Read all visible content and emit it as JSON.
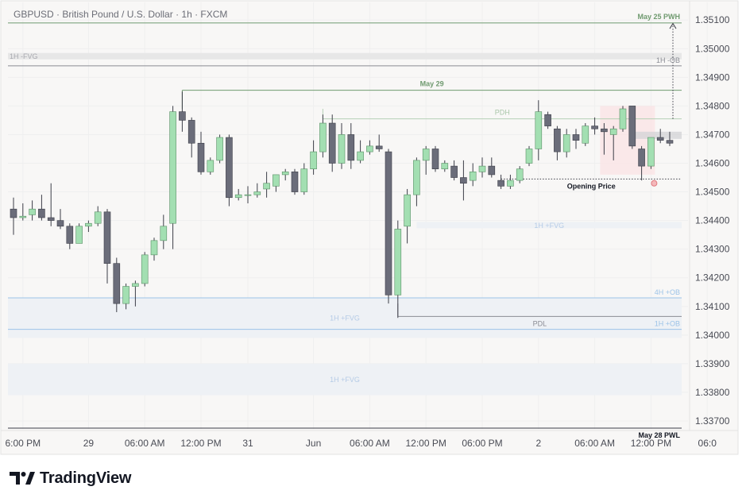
{
  "header": {
    "symbol_title": "GBPUSD · British Pound / U.S. Dollar · 1h · FXCM"
  },
  "brand": {
    "name": "TradingView",
    "logo_icon": "tradingview-logo-icon"
  },
  "colors": {
    "up": "#a3dfb2",
    "down": "#6b6d7a",
    "wick": "#3c3e48",
    "green_line": "#6f9a6f",
    "blue_line": "#9cc3e8",
    "gray_line": "#8a8c94",
    "fvg_zone": "#eef1f5",
    "bear_fvg_zone": "#e7e7e7",
    "session_box": "#fbe3e4"
  },
  "chart_data": {
    "type": "candlestick",
    "title": "GBPUSD · British Pound / U.S. Dollar · 1h · FXCM",
    "ylim": [
      1.3365,
      1.3517
    ],
    "y_ticks": [
      "1.35100",
      "1.35000",
      "1.34900",
      "1.34800",
      "1.34700",
      "1.34600",
      "1.34500",
      "1.34400",
      "1.34300",
      "1.34200",
      "1.34100",
      "1.34000",
      "1.33900",
      "1.33800",
      "1.33700"
    ],
    "x_ticks": [
      {
        "label": "6:00 PM",
        "index": 1
      },
      {
        "label": "29",
        "index": 8
      },
      {
        "label": "06:00 AM",
        "index": 14
      },
      {
        "label": "12:00 PM",
        "index": 20
      },
      {
        "label": "31",
        "index": 25
      },
      {
        "label": "Jun",
        "index": 32
      },
      {
        "label": "06:00 AM",
        "index": 38
      },
      {
        "label": "12:00 PM",
        "index": 44
      },
      {
        "label": "06:00 PM",
        "index": 50
      },
      {
        "label": "2",
        "index": 56
      },
      {
        "label": "06:00 AM",
        "index": 62
      },
      {
        "label": "12:00 PM",
        "index": 68
      },
      {
        "label": "06:0",
        "index": 74
      }
    ],
    "candles": [
      {
        "o": 1.3444,
        "h": 1.3448,
        "l": 1.3435,
        "c": 1.3441
      },
      {
        "o": 1.3441,
        "h": 1.3446,
        "l": 1.344,
        "c": 1.34415
      },
      {
        "o": 1.3442,
        "h": 1.3447,
        "l": 1.344,
        "c": 1.3444
      },
      {
        "o": 1.3444,
        "h": 1.3449,
        "l": 1.344,
        "c": 1.3441
      },
      {
        "o": 1.3441,
        "h": 1.3453,
        "l": 1.3438,
        "c": 1.344
      },
      {
        "o": 1.344,
        "h": 1.3444,
        "l": 1.3437,
        "c": 1.3438
      },
      {
        "o": 1.3438,
        "h": 1.3439,
        "l": 1.343,
        "c": 1.3432
      },
      {
        "o": 1.3432,
        "h": 1.3439,
        "l": 1.3432,
        "c": 1.3438
      },
      {
        "o": 1.3438,
        "h": 1.344,
        "l": 1.3436,
        "c": 1.3439
      },
      {
        "o": 1.3439,
        "h": 1.3445,
        "l": 1.3438,
        "c": 1.3443
      },
      {
        "o": 1.3443,
        "h": 1.3444,
        "l": 1.3418,
        "c": 1.3425
      },
      {
        "o": 1.3425,
        "h": 1.3427,
        "l": 1.3408,
        "c": 1.3411
      },
      {
        "o": 1.3411,
        "h": 1.3418,
        "l": 1.3409,
        "c": 1.3417
      },
      {
        "o": 1.3417,
        "h": 1.3419,
        "l": 1.341,
        "c": 1.3418
      },
      {
        "o": 1.3418,
        "h": 1.3429,
        "l": 1.3417,
        "c": 1.3428
      },
      {
        "o": 1.3428,
        "h": 1.3434,
        "l": 1.3426,
        "c": 1.3433
      },
      {
        "o": 1.3433,
        "h": 1.3442,
        "l": 1.343,
        "c": 1.3438
      },
      {
        "o": 1.3439,
        "h": 1.348,
        "l": 1.343,
        "c": 1.3478
      },
      {
        "o": 1.3478,
        "h": 1.3485,
        "l": 1.3471,
        "c": 1.3475
      },
      {
        "o": 1.3475,
        "h": 1.3476,
        "l": 1.3462,
        "c": 1.3467
      },
      {
        "o": 1.3467,
        "h": 1.3471,
        "l": 1.3456,
        "c": 1.3457
      },
      {
        "o": 1.3457,
        "h": 1.3462,
        "l": 1.3456,
        "c": 1.3461
      },
      {
        "o": 1.3461,
        "h": 1.347,
        "l": 1.346,
        "c": 1.3469
      },
      {
        "o": 1.3469,
        "h": 1.347,
        "l": 1.3445,
        "c": 1.3448
      },
      {
        "o": 1.3448,
        "h": 1.3451,
        "l": 1.3447,
        "c": 1.3449
      },
      {
        "o": 1.3449,
        "h": 1.3452,
        "l": 1.3446,
        "c": 1.3449
      },
      {
        "o": 1.3449,
        "h": 1.3453,
        "l": 1.3448,
        "c": 1.345
      },
      {
        "o": 1.3451,
        "h": 1.3457,
        "l": 1.3448,
        "c": 1.3453
      },
      {
        "o": 1.3452,
        "h": 1.3456,
        "l": 1.345,
        "c": 1.3456
      },
      {
        "o": 1.3456,
        "h": 1.3458,
        "l": 1.3454,
        "c": 1.3457
      },
      {
        "o": 1.3457,
        "h": 1.3458,
        "l": 1.3449,
        "c": 1.345
      },
      {
        "o": 1.345,
        "h": 1.346,
        "l": 1.3449,
        "c": 1.3458
      },
      {
        "o": 1.3458,
        "h": 1.3468,
        "l": 1.3456,
        "c": 1.3464
      },
      {
        "o": 1.3464,
        "h": 1.3477,
        "l": 1.3462,
        "c": 1.3474
      },
      {
        "o": 1.3474,
        "h": 1.3477,
        "l": 1.3457,
        "c": 1.346
      },
      {
        "o": 1.346,
        "h": 1.3474,
        "l": 1.3458,
        "c": 1.347
      },
      {
        "o": 1.347,
        "h": 1.3474,
        "l": 1.3458,
        "c": 1.3461
      },
      {
        "o": 1.3461,
        "h": 1.3468,
        "l": 1.346,
        "c": 1.3464
      },
      {
        "o": 1.3464,
        "h": 1.3468,
        "l": 1.3463,
        "c": 1.3466
      },
      {
        "o": 1.3466,
        "h": 1.347,
        "l": 1.3464,
        "c": 1.3465
      },
      {
        "o": 1.3464,
        "h": 1.3465,
        "l": 1.3411,
        "c": 1.3414
      },
      {
        "o": 1.3414,
        "h": 1.344,
        "l": 1.3406,
        "c": 1.3437
      },
      {
        "o": 1.3438,
        "h": 1.3451,
        "l": 1.3432,
        "c": 1.3449
      },
      {
        "o": 1.3449,
        "h": 1.3462,
        "l": 1.3445,
        "c": 1.3461
      },
      {
        "o": 1.3461,
        "h": 1.3466,
        "l": 1.3456,
        "c": 1.3465
      },
      {
        "o": 1.3465,
        "h": 1.3466,
        "l": 1.3457,
        "c": 1.3458
      },
      {
        "o": 1.3458,
        "h": 1.3461,
        "l": 1.3457,
        "c": 1.346
      },
      {
        "o": 1.3459,
        "h": 1.3461,
        "l": 1.3454,
        "c": 1.3455
      },
      {
        "o": 1.3455,
        "h": 1.3461,
        "l": 1.3447,
        "c": 1.3453
      },
      {
        "o": 1.3454,
        "h": 1.346,
        "l": 1.3452,
        "c": 1.3457
      },
      {
        "o": 1.3457,
        "h": 1.3462,
        "l": 1.3455,
        "c": 1.3459
      },
      {
        "o": 1.3459,
        "h": 1.3462,
        "l": 1.3455,
        "c": 1.3456
      },
      {
        "o": 1.3454,
        "h": 1.3456,
        "l": 1.3451,
        "c": 1.3452
      },
      {
        "o": 1.3452,
        "h": 1.3456,
        "l": 1.3451,
        "c": 1.3454
      },
      {
        "o": 1.3454,
        "h": 1.3459,
        "l": 1.3453,
        "c": 1.3458
      },
      {
        "o": 1.346,
        "h": 1.3466,
        "l": 1.3459,
        "c": 1.3465
      },
      {
        "o": 1.3465,
        "h": 1.3482,
        "l": 1.3461,
        "c": 1.3478
      },
      {
        "o": 1.3477,
        "h": 1.3478,
        "l": 1.3472,
        "c": 1.3473
      },
      {
        "o": 1.3472,
        "h": 1.3473,
        "l": 1.3461,
        "c": 1.3464
      },
      {
        "o": 1.3464,
        "h": 1.3472,
        "l": 1.3462,
        "c": 1.347
      },
      {
        "o": 1.347,
        "h": 1.3472,
        "l": 1.3465,
        "c": 1.3468
      },
      {
        "o": 1.3467,
        "h": 1.3474,
        "l": 1.3466,
        "c": 1.3473
      },
      {
        "o": 1.3473,
        "h": 1.3476,
        "l": 1.347,
        "c": 1.3472
      },
      {
        "o": 1.3472,
        "h": 1.3474,
        "l": 1.3463,
        "c": 1.3471
      },
      {
        "o": 1.347,
        "h": 1.3473,
        "l": 1.3461,
        "c": 1.3472
      },
      {
        "o": 1.3472,
        "h": 1.348,
        "l": 1.3471,
        "c": 1.3479
      },
      {
        "o": 1.348,
        "h": 1.348,
        "l": 1.3465,
        "c": 1.3466
      },
      {
        "o": 1.3465,
        "h": 1.3466,
        "l": 1.3454,
        "c": 1.3459
      },
      {
        "o": 1.3459,
        "h": 1.3469,
        "l": 1.3458,
        "c": 1.3469
      },
      {
        "o": 1.3469,
        "h": 1.3472,
        "l": 1.3467,
        "c": 1.3468
      },
      {
        "o": 1.3468,
        "h": 1.3471,
        "l": 1.3466,
        "c": 1.3467
      }
    ],
    "levels": [
      {
        "label": "May 25 PWH",
        "value": 1.3509,
        "style": "green",
        "from_index": 0,
        "label_align": "right"
      },
      {
        "label": "May 29",
        "value": 1.34855,
        "style": "green",
        "from_index": 18,
        "label_align": "center"
      },
      {
        "label": "PDH",
        "value": 1.34755,
        "style": "green-light",
        "from_index": 33,
        "label_align": "center"
      },
      {
        "label": "1H -OB",
        "value": 1.3494,
        "style": "gray",
        "from_index": 0,
        "label_align": "right-above"
      },
      {
        "label": "Opening Price",
        "value": 1.34545,
        "style": "dotted",
        "from_index": 52,
        "label_align": "center-below"
      },
      {
        "label": "4H +OB",
        "value": 1.3413,
        "style": "blue",
        "from_index": 0,
        "label_align": "right-above"
      },
      {
        "label": "1H +OB",
        "value": 1.3402,
        "style": "blue",
        "from_index": 0,
        "label_align": "right-above"
      },
      {
        "label": "PDL",
        "value": 1.34065,
        "style": "gray",
        "from_index": 41,
        "label_align": "center-below"
      },
      {
        "label": "May 28 PWL",
        "value": 1.33675,
        "style": "dark",
        "from_index": 0,
        "label_align": "right-below"
      }
    ],
    "zones": [
      {
        "label": "1H -FVG",
        "from": 1.34985,
        "to": 1.34975,
        "style": "bear",
        "from_index": 0,
        "label_align": "left"
      },
      {
        "label": "1H +FVG",
        "from": 1.34395,
        "to": 1.3438,
        "style": "fvg",
        "from_index": 43,
        "label_align": "center"
      },
      {
        "label": "1H +FVG",
        "from": 1.3413,
        "to": 1.3399,
        "style": "fvg",
        "from_index": 0,
        "label_align": "center"
      },
      {
        "label": "1H +FVG",
        "from": 1.339,
        "to": 1.3379,
        "style": "fvg",
        "from_index": 0,
        "label_align": "center"
      }
    ]
  }
}
